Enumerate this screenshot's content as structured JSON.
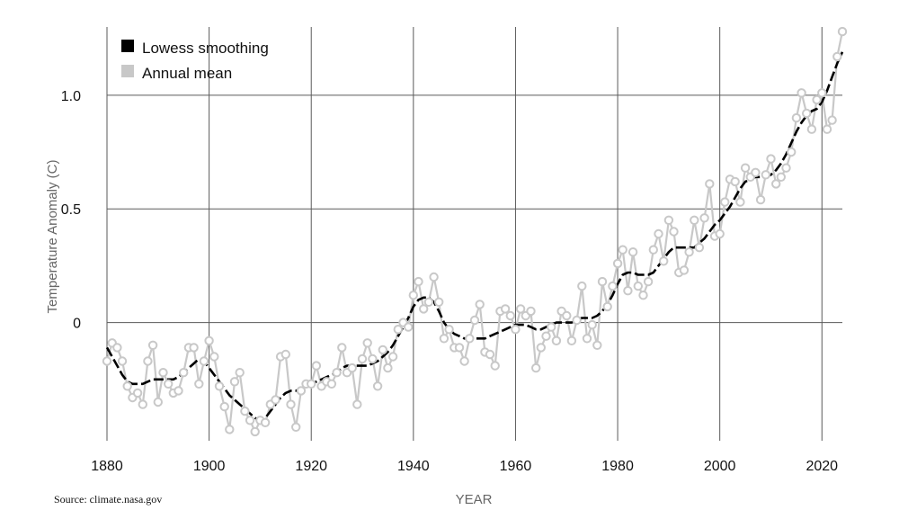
{
  "chart_data": {
    "type": "line",
    "xlabel": "YEAR",
    "ylabel": "Temperature Anomaly (C)",
    "source": "Source: climate.nasa.gov",
    "xlim": [
      1880,
      2024
    ],
    "ylim": [
      -0.52,
      1.3
    ],
    "x_ticks": [
      1880,
      1900,
      1920,
      1940,
      1960,
      1980,
      2000,
      2020
    ],
    "x_tick_labels": [
      "1880",
      "1900",
      "1920",
      "1940",
      "1960",
      "1980",
      "2000",
      "2020"
    ],
    "y_ticks": [
      0,
      0.5,
      1.0
    ],
    "y_tick_labels": [
      "0",
      "0.5",
      "1.0"
    ],
    "grid": true,
    "legend": {
      "position": "top-left",
      "entries": [
        {
          "label": "Lowess smoothing",
          "color": "#000000"
        },
        {
          "label": "Annual mean",
          "color": "#c8c8c8"
        }
      ]
    },
    "series": [
      {
        "name": "Annual mean",
        "color": "#c8c8c8",
        "marker": "circle",
        "x": [
          1880,
          1881,
          1882,
          1883,
          1884,
          1885,
          1886,
          1887,
          1888,
          1889,
          1890,
          1891,
          1892,
          1893,
          1894,
          1895,
          1896,
          1897,
          1898,
          1899,
          1900,
          1901,
          1902,
          1903,
          1904,
          1905,
          1906,
          1907,
          1908,
          1909,
          1910,
          1911,
          1912,
          1913,
          1914,
          1915,
          1916,
          1917,
          1918,
          1919,
          1920,
          1921,
          1922,
          1923,
          1924,
          1925,
          1926,
          1927,
          1928,
          1929,
          1930,
          1931,
          1932,
          1933,
          1934,
          1935,
          1936,
          1937,
          1938,
          1939,
          1940,
          1941,
          1942,
          1943,
          1944,
          1945,
          1946,
          1947,
          1948,
          1949,
          1950,
          1951,
          1952,
          1953,
          1954,
          1955,
          1956,
          1957,
          1958,
          1959,
          1960,
          1961,
          1962,
          1963,
          1964,
          1965,
          1966,
          1967,
          1968,
          1969,
          1970,
          1971,
          1972,
          1973,
          1974,
          1975,
          1976,
          1977,
          1978,
          1979,
          1980,
          1981,
          1982,
          1983,
          1984,
          1985,
          1986,
          1987,
          1988,
          1989,
          1990,
          1991,
          1992,
          1993,
          1994,
          1995,
          1996,
          1997,
          1998,
          1999,
          2000,
          2001,
          2002,
          2003,
          2004,
          2005,
          2006,
          2007,
          2008,
          2009,
          2010,
          2011,
          2012,
          2013,
          2014,
          2015,
          2016,
          2017,
          2018,
          2019,
          2020,
          2021,
          2022,
          2023,
          2024
        ],
        "y": [
          -0.17,
          -0.09,
          -0.11,
          -0.17,
          -0.28,
          -0.33,
          -0.31,
          -0.36,
          -0.17,
          -0.1,
          -0.35,
          -0.22,
          -0.27,
          -0.31,
          -0.3,
          -0.22,
          -0.11,
          -0.11,
          -0.27,
          -0.17,
          -0.08,
          -0.15,
          -0.28,
          -0.37,
          -0.47,
          -0.26,
          -0.22,
          -0.39,
          -0.43,
          -0.48,
          -0.43,
          -0.44,
          -0.36,
          -0.34,
          -0.15,
          -0.14,
          -0.36,
          -0.46,
          -0.3,
          -0.27,
          -0.27,
          -0.19,
          -0.28,
          -0.26,
          -0.27,
          -0.22,
          -0.11,
          -0.22,
          -0.2,
          -0.36,
          -0.16,
          -0.09,
          -0.16,
          -0.28,
          -0.12,
          -0.2,
          -0.15,
          -0.03,
          0.0,
          -0.02,
          0.12,
          0.18,
          0.06,
          0.09,
          0.2,
          0.09,
          -0.07,
          -0.03,
          -0.11,
          -0.11,
          -0.17,
          -0.07,
          0.01,
          0.08,
          -0.13,
          -0.14,
          -0.19,
          0.05,
          0.06,
          0.03,
          -0.03,
          0.06,
          0.03,
          0.05,
          -0.2,
          -0.11,
          -0.06,
          -0.02,
          -0.08,
          0.05,
          0.03,
          -0.08,
          0.01,
          0.16,
          -0.07,
          -0.01,
          -0.1,
          0.18,
          0.07,
          0.16,
          0.26,
          0.32,
          0.14,
          0.31,
          0.16,
          0.12,
          0.18,
          0.32,
          0.39,
          0.27,
          0.45,
          0.4,
          0.22,
          0.23,
          0.31,
          0.45,
          0.33,
          0.46,
          0.61,
          0.38,
          0.39,
          0.53,
          0.63,
          0.62,
          0.53,
          0.68,
          0.64,
          0.66,
          0.54,
          0.65,
          0.72,
          0.61,
          0.64,
          0.68,
          0.75,
          0.9,
          1.01,
          0.92,
          0.85,
          0.98,
          1.01,
          0.85,
          0.89,
          1.17,
          1.28
        ]
      },
      {
        "name": "Lowess smoothing",
        "color": "#000000",
        "style": "dashed",
        "x": [
          1880,
          1881,
          1882,
          1883,
          1884,
          1885,
          1886,
          1887,
          1888,
          1889,
          1890,
          1891,
          1892,
          1893,
          1894,
          1895,
          1896,
          1897,
          1898,
          1899,
          1900,
          1901,
          1902,
          1903,
          1904,
          1905,
          1906,
          1907,
          1908,
          1909,
          1910,
          1911,
          1912,
          1913,
          1914,
          1915,
          1916,
          1917,
          1918,
          1919,
          1920,
          1921,
          1922,
          1923,
          1924,
          1925,
          1926,
          1927,
          1928,
          1929,
          1930,
          1931,
          1932,
          1933,
          1934,
          1935,
          1936,
          1937,
          1938,
          1939,
          1940,
          1941,
          1942,
          1943,
          1944,
          1945,
          1946,
          1947,
          1948,
          1949,
          1950,
          1951,
          1952,
          1953,
          1954,
          1955,
          1956,
          1957,
          1958,
          1959,
          1960,
          1961,
          1962,
          1963,
          1964,
          1965,
          1966,
          1967,
          1968,
          1969,
          1970,
          1971,
          1972,
          1973,
          1974,
          1975,
          1976,
          1977,
          1978,
          1979,
          1980,
          1981,
          1982,
          1983,
          1984,
          1985,
          1986,
          1987,
          1988,
          1989,
          1990,
          1991,
          1992,
          1993,
          1994,
          1995,
          1996,
          1997,
          1998,
          1999,
          2000,
          2001,
          2002,
          2003,
          2004,
          2005,
          2006,
          2007,
          2008,
          2009,
          2010,
          2011,
          2012,
          2013,
          2014,
          2015,
          2016,
          2017,
          2018,
          2019,
          2020,
          2021,
          2022,
          2023,
          2024
        ],
        "y": [
          -0.11,
          -0.15,
          -0.19,
          -0.23,
          -0.26,
          -0.27,
          -0.27,
          -0.27,
          -0.26,
          -0.25,
          -0.25,
          -0.25,
          -0.25,
          -0.25,
          -0.24,
          -0.22,
          -0.2,
          -0.18,
          -0.16,
          -0.17,
          -0.2,
          -0.23,
          -0.26,
          -0.29,
          -0.32,
          -0.34,
          -0.36,
          -0.38,
          -0.4,
          -0.42,
          -0.43,
          -0.42,
          -0.39,
          -0.36,
          -0.33,
          -0.31,
          -0.3,
          -0.3,
          -0.29,
          -0.28,
          -0.27,
          -0.26,
          -0.25,
          -0.24,
          -0.23,
          -0.22,
          -0.2,
          -0.19,
          -0.19,
          -0.19,
          -0.19,
          -0.19,
          -0.18,
          -0.17,
          -0.15,
          -0.13,
          -0.1,
          -0.06,
          -0.02,
          0.02,
          0.07,
          0.1,
          0.11,
          0.11,
          0.09,
          0.05,
          0.0,
          -0.03,
          -0.05,
          -0.06,
          -0.07,
          -0.07,
          -0.07,
          -0.07,
          -0.07,
          -0.06,
          -0.05,
          -0.04,
          -0.03,
          -0.02,
          -0.01,
          -0.01,
          -0.01,
          -0.02,
          -0.03,
          -0.03,
          -0.02,
          -0.01,
          0.0,
          0.0,
          0.0,
          0.0,
          0.01,
          0.02,
          0.02,
          0.02,
          0.03,
          0.05,
          0.08,
          0.12,
          0.17,
          0.21,
          0.22,
          0.22,
          0.21,
          0.21,
          0.21,
          0.22,
          0.25,
          0.28,
          0.31,
          0.33,
          0.33,
          0.33,
          0.33,
          0.33,
          0.35,
          0.37,
          0.4,
          0.43,
          0.45,
          0.48,
          0.51,
          0.55,
          0.59,
          0.62,
          0.63,
          0.64,
          0.64,
          0.64,
          0.65,
          0.67,
          0.7,
          0.74,
          0.79,
          0.84,
          0.88,
          0.91,
          0.93,
          0.94,
          0.97,
          1.02,
          1.08,
          1.14,
          1.19
        ]
      }
    ]
  }
}
